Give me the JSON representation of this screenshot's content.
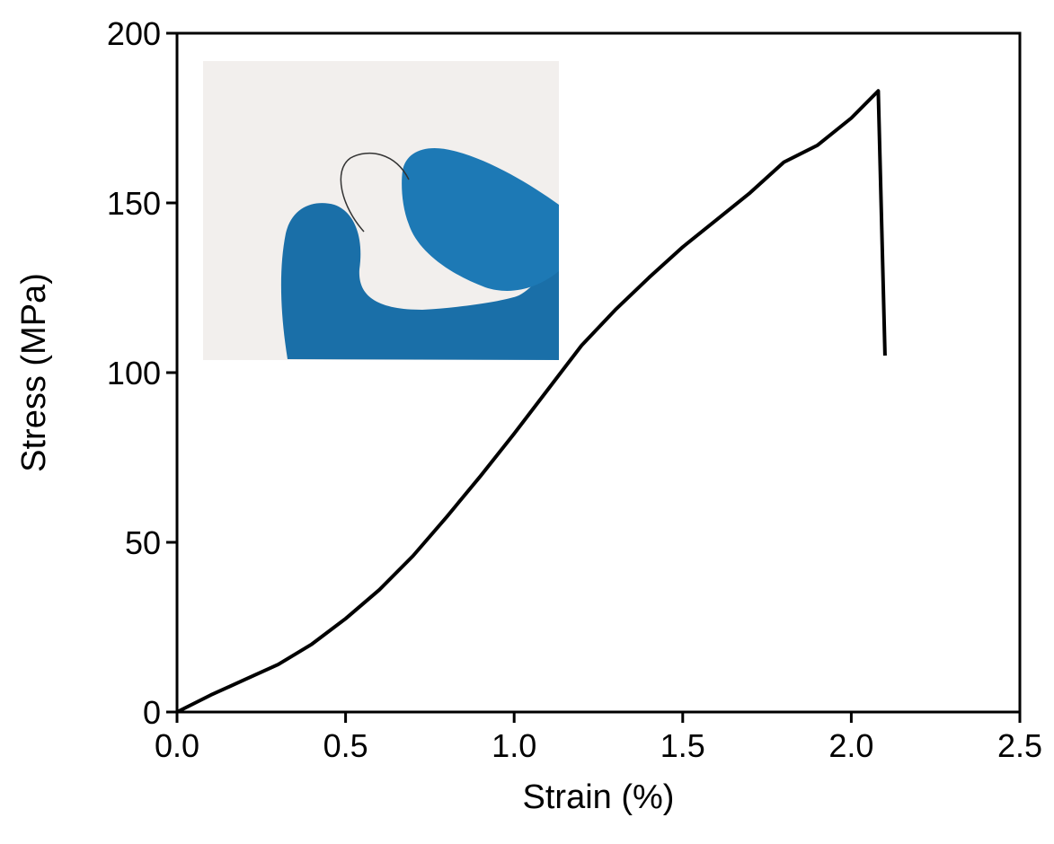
{
  "chart_data": {
    "type": "line",
    "x_label": "Strain (%)",
    "y_label": "Stress (MPa)",
    "xlim": [
      0,
      2.5
    ],
    "ylim": [
      0,
      200
    ],
    "xticks": [
      {
        "value": 0,
        "label": "0.0"
      },
      0.5,
      {
        "value": 1,
        "label": "1.0"
      },
      1.5,
      {
        "value": 2,
        "label": "2.0"
      },
      2.5
    ],
    "yticks": [
      0,
      50,
      100,
      150,
      200
    ],
    "series": [
      {
        "color": "#000000",
        "x": [
          0,
          0.1,
          0.2,
          0.3,
          0.4,
          0.5,
          0.6,
          0.7,
          0.8,
          0.9,
          1.0,
          1.1,
          1.2,
          1.3,
          1.4,
          1.5,
          1.6,
          1.7,
          1.8,
          1.9,
          2.0,
          2.08,
          2.1
        ],
        "values": [
          0,
          5,
          9.5,
          14,
          20,
          27.5,
          36,
          46,
          57.5,
          69.5,
          82,
          95,
          108,
          118.5,
          128,
          137,
          145,
          153,
          162,
          167,
          175,
          183,
          105
        ]
      }
    ]
  }
}
